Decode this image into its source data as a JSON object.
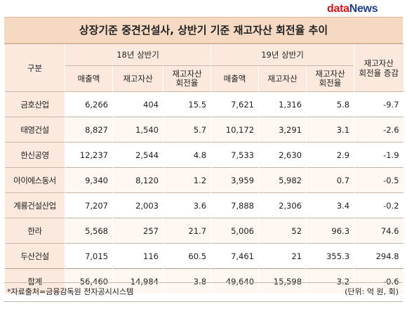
{
  "logo": {
    "data": "data",
    "news": "News"
  },
  "chart_data": {
    "type": "table",
    "title": "상장기준 중견건설사, 상반기 기준 재고자산 회전율 추이",
    "header": {
      "row_label": "구분",
      "period_1": "18년 상반기",
      "period_2": "19년 상반기",
      "change_label": "재고자산\n회전율 증감",
      "sub_columns": [
        "매출액",
        "재고자산",
        "재고자산\n회전율"
      ]
    },
    "rows": [
      {
        "name": "금호산업",
        "values": [
          "6,266",
          "404",
          "15.5",
          "7,621",
          "1,316",
          "5.8",
          "-9.7"
        ]
      },
      {
        "name": "태영건설",
        "values": [
          "8,827",
          "1,540",
          "5.7",
          "10,172",
          "3,291",
          "3.1",
          "-2.6"
        ]
      },
      {
        "name": "한신공영",
        "values": [
          "12,237",
          "2,544",
          "4.8",
          "7,533",
          "2,630",
          "2.9",
          "-1.9"
        ]
      },
      {
        "name": "아이에스동서",
        "values": [
          "9,340",
          "8,120",
          "1.2",
          "3,959",
          "5,982",
          "0.7",
          "-0.5"
        ]
      },
      {
        "name": "계룡건설산업",
        "values": [
          "7,207",
          "2,003",
          "3.6",
          "7,888",
          "2,306",
          "3.4",
          "-0.2"
        ]
      },
      {
        "name": "한라",
        "values": [
          "5,568",
          "257",
          "21.7",
          "5,006",
          "52",
          "96.3",
          "74.6"
        ]
      },
      {
        "name": "두산건설",
        "values": [
          "7,015",
          "116",
          "60.5",
          "7,461",
          "21",
          "355.3",
          "294.8"
        ]
      },
      {
        "name": "합계",
        "values": [
          "56,460",
          "14,984",
          "3.8",
          "49,640",
          "15,598",
          "3.2",
          "-0.6"
        ]
      }
    ],
    "source": "*자료출처=금융감독원 전자공시시스템",
    "unit": "(단위: 억 원, 회)"
  }
}
